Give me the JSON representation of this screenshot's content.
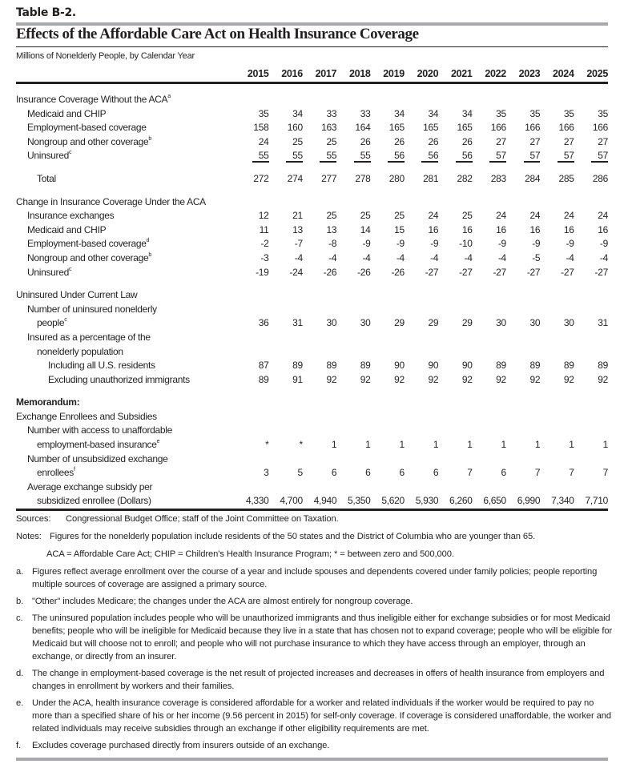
{
  "table_label": "Table B-2.",
  "title": "Effects of the Affordable Care Act on Health Insurance Coverage",
  "subtitle": "Millions of Nonelderly People, by Calendar Year",
  "years": [
    "2015",
    "2016",
    "2017",
    "2018",
    "2019",
    "2020",
    "2021",
    "2022",
    "2023",
    "2024",
    "2025"
  ],
  "sections": [
    {
      "title": "Insurance Coverage Without the ACA",
      "title_sup": "a",
      "rows": [
        {
          "lines": [
            "Medicaid and CHIP"
          ],
          "indent": 1,
          "values": [
            "35",
            "34",
            "33",
            "33",
            "34",
            "34",
            "34",
            "35",
            "35",
            "35",
            "35"
          ]
        },
        {
          "lines": [
            "Employment-based coverage"
          ],
          "indent": 1,
          "values": [
            "158",
            "160",
            "163",
            "164",
            "165",
            "165",
            "165",
            "166",
            "166",
            "166",
            "166"
          ]
        },
        {
          "lines": [
            "Nongroup and other coverage"
          ],
          "sup": "b",
          "indent": 1,
          "values": [
            "24",
            "25",
            "25",
            "26",
            "26",
            "26",
            "26",
            "27",
            "27",
            "27",
            "27"
          ]
        },
        {
          "lines": [
            "Uninsured"
          ],
          "sup": "c",
          "indent": 1,
          "underline": true,
          "values": [
            "55",
            "55",
            "55",
            "55",
            "56",
            "56",
            "56",
            "57",
            "57",
            "57",
            "57"
          ]
        },
        {
          "lines": [
            "Total"
          ],
          "indent": 2,
          "gap_before": true,
          "values": [
            "272",
            "274",
            "277",
            "278",
            "280",
            "281",
            "282",
            "283",
            "284",
            "285",
            "286"
          ]
        }
      ]
    },
    {
      "title": "Change in Insurance Coverage Under the ACA",
      "rows": [
        {
          "lines": [
            "Insurance exchanges"
          ],
          "indent": 1,
          "values": [
            "12",
            "21",
            "25",
            "25",
            "25",
            "24",
            "25",
            "24",
            "24",
            "24",
            "24"
          ]
        },
        {
          "lines": [
            "Medicaid and CHIP"
          ],
          "indent": 1,
          "values": [
            "11",
            "13",
            "13",
            "14",
            "15",
            "16",
            "16",
            "16",
            "16",
            "16",
            "16"
          ]
        },
        {
          "lines": [
            "Employment-based coverage"
          ],
          "sup": "d",
          "indent": 1,
          "values": [
            "-2",
            "-7",
            "-8",
            "-9",
            "-9",
            "-9",
            "-10",
            "-9",
            "-9",
            "-9",
            "-9"
          ]
        },
        {
          "lines": [
            "Nongroup and other coverage"
          ],
          "sup": "b",
          "indent": 1,
          "values": [
            "-3",
            "-4",
            "-4",
            "-4",
            "-4",
            "-4",
            "-4",
            "-4",
            "-5",
            "-4",
            "-4"
          ]
        },
        {
          "lines": [
            "Uninsured"
          ],
          "sup": "c",
          "indent": 1,
          "values": [
            "-19",
            "-24",
            "-26",
            "-26",
            "-26",
            "-27",
            "-27",
            "-27",
            "-27",
            "-27",
            "-27"
          ]
        }
      ]
    },
    {
      "title": "Uninsured Under Current Law",
      "rows": [
        {
          "lines": [
            "Number of uninsured nonelderly",
            "people"
          ],
          "sup": "c",
          "indent": 1,
          "values": [
            "36",
            "31",
            "30",
            "30",
            "29",
            "29",
            "29",
            "30",
            "30",
            "30",
            "31"
          ]
        },
        {
          "lines": [
            "Insured as a percentage of the",
            "nonelderly population"
          ],
          "indent": 1,
          "values": null
        },
        {
          "lines": [
            "Including all U.S. residents"
          ],
          "indent": 3,
          "values": [
            "87",
            "89",
            "89",
            "89",
            "90",
            "90",
            "90",
            "89",
            "89",
            "89",
            "89"
          ]
        },
        {
          "lines": [
            "Excluding unauthorized immigrants"
          ],
          "indent": 3,
          "values": [
            "89",
            "91",
            "92",
            "92",
            "92",
            "92",
            "92",
            "92",
            "92",
            "92",
            "92"
          ]
        }
      ]
    },
    {
      "heading": "Memorandum:",
      "title": "Exchange Enrollees and Subsidies",
      "rows": [
        {
          "lines": [
            "Number with access to unaffordable",
            "employment-based insurance"
          ],
          "sup": "e",
          "indent": 1,
          "values": [
            "*",
            "*",
            "1",
            "1",
            "1",
            "1",
            "1",
            "1",
            "1",
            "1",
            "1"
          ]
        },
        {
          "lines": [
            "Number of unsubsidized exchange",
            "enrollees"
          ],
          "sup": "f",
          "indent": 1,
          "values": [
            "3",
            "5",
            "6",
            "6",
            "6",
            "6",
            "7",
            "6",
            "7",
            "7",
            "7"
          ]
        },
        {
          "lines": [
            "Average exchange subsidy per",
            "subsidized enrollee (Dollars)"
          ],
          "indent": 1,
          "values": [
            "4,330",
            "4,700",
            "4,940",
            "5,350",
            "5,620",
            "5,930",
            "6,260",
            "6,650",
            "6,990",
            "7,340",
            "7,710"
          ]
        }
      ]
    }
  ],
  "sources": {
    "label": "Sources:",
    "text": "Congressional Budget Office; staff of the Joint Committee on Taxation."
  },
  "notes_intro": {
    "label": "Notes:",
    "text": "Figures for the nonelderly population include residents of the 50 states and the District of Columbia who are younger than 65."
  },
  "aca_line": "ACA = Affordable Care Act; CHIP = Children's Health Insurance Program; * = between zero and 500,000.",
  "footnotes": [
    {
      "marker": "a.",
      "text": "Figures reflect average enrollment over the course of a year and include spouses and dependents covered under family policies; people reporting multiple sources of coverage are assigned a primary source."
    },
    {
      "marker": "b.",
      "text": "\"Other\" includes Medicare; the changes under the ACA are almost entirely for nongroup coverage."
    },
    {
      "marker": "c.",
      "text": "The uninsured population includes people who will be unauthorized immigrants and thus ineligible either for exchange subsidies or for most Medicaid benefits; people who will be ineligible for Medicaid because they live in a state that has chosen not to expand coverage; people who will be eligible for Medicaid but will choose not to enroll; and people who will not purchase insurance to which they have access through an employer, through an exchange, or directly from an insurer."
    },
    {
      "marker": "d.",
      "text": "The change in employment-based coverage is the net result of projected increases and decreases in offers of health insurance from employers and changes in enrollment by workers and their families."
    },
    {
      "marker": "e.",
      "text": "Under the ACA, health insurance coverage is considered affordable for a worker and related individuals if the worker would be required to pay no more than a specified share of his or her income (9.56 percent in 2015) for self-only coverage. If coverage is considered unaffordable, the worker and related individuals may receive subsidies through an exchange if other eligibility requirements are met."
    },
    {
      "marker": "f.",
      "text": "Excludes coverage purchased directly from insurers outside of an exchange."
    }
  ]
}
